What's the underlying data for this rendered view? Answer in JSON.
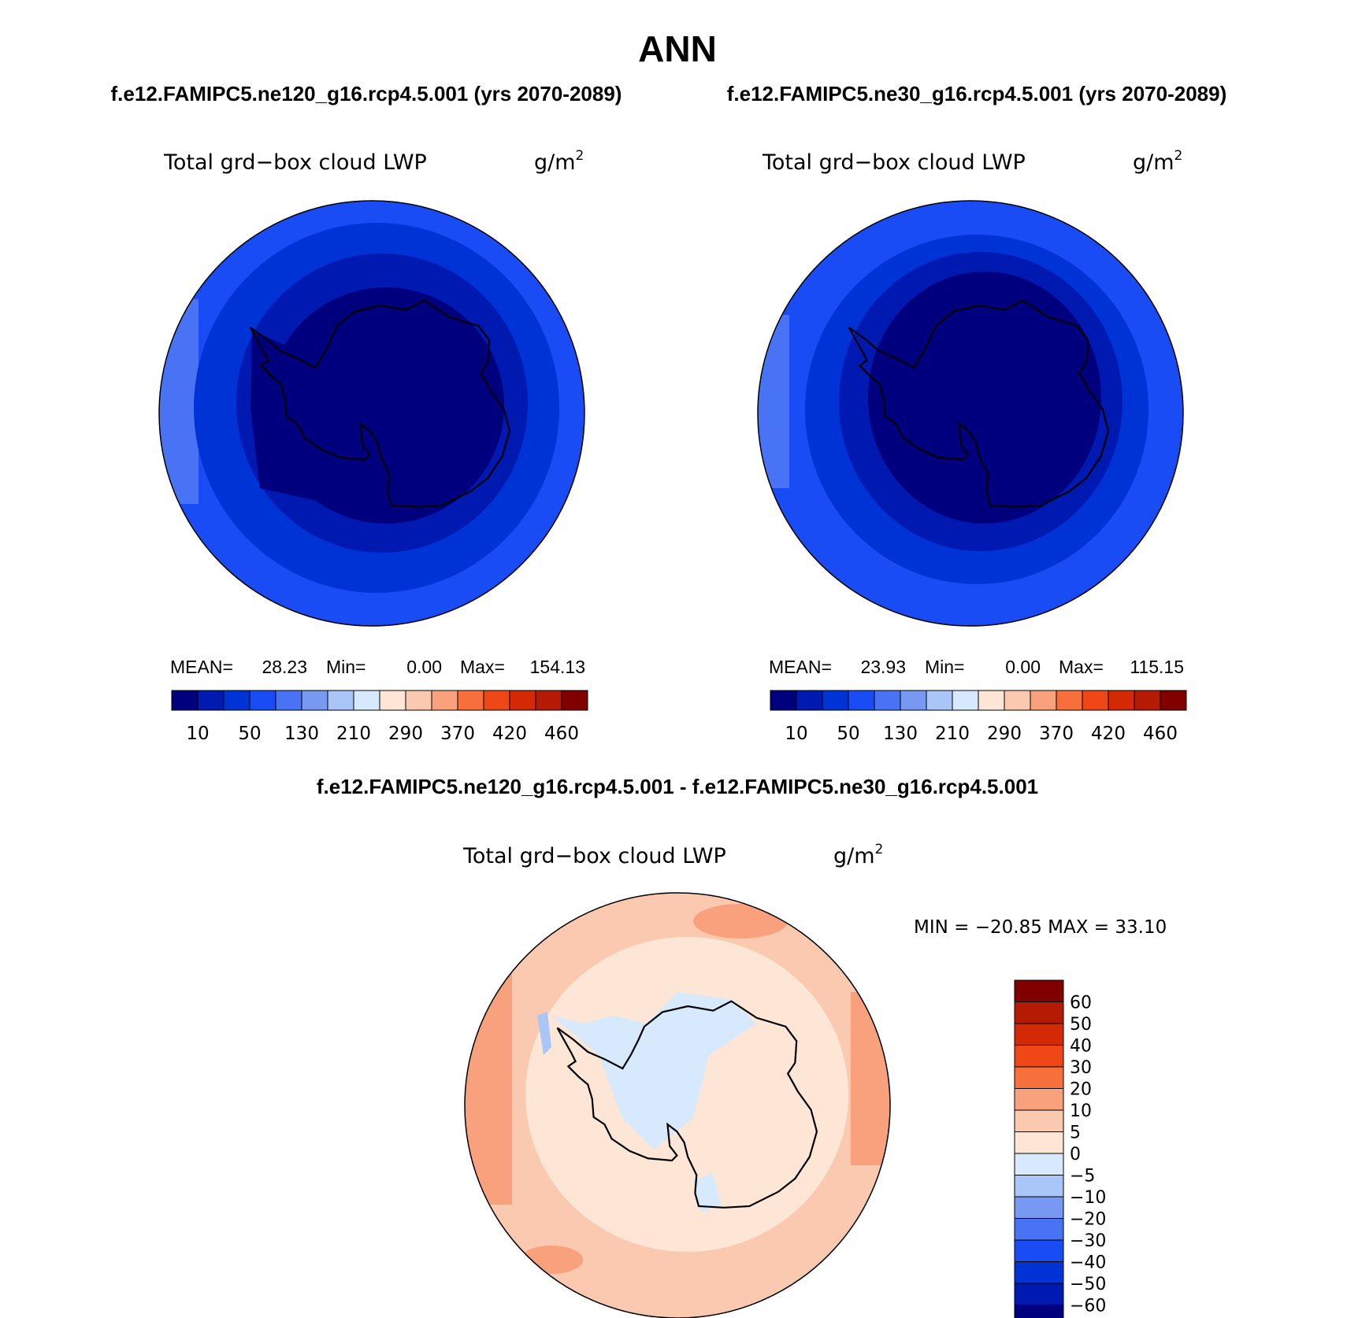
{
  "header": {
    "title": "ANN",
    "case_left": "f.e12.FAMIPC5.ne120_g16.rcp4.5.001 (yrs 2070-2089)",
    "case_right": "f.e12.FAMIPC5.ne30_g16.rcp4.5.001 (yrs 2070-2089)",
    "diff_title": "f.e12.FAMIPC5.ne120_g16.rcp4.5.001 - f.e12.FAMIPC5.ne30_g16.rcp4.5.001"
  },
  "panels": [
    {
      "id": "ne120",
      "variable": "Total grd−box cloud LWP",
      "units_base": "g/m",
      "units_exp": "2",
      "stats": {
        "mean_label": "MEAN=",
        "mean": "28.23",
        "min_label": "Min=",
        "min": "0.00",
        "max_label": "Max=",
        "max": "154.13"
      }
    },
    {
      "id": "ne30",
      "variable": "Total grd−box cloud LWP",
      "units_base": "g/m",
      "units_exp": "2",
      "stats": {
        "mean_label": "MEAN=",
        "mean": "23.93",
        "min_label": "Min=",
        "min": "0.00",
        "max_label": "Max=",
        "max": "115.15"
      }
    }
  ],
  "diff_panel": {
    "variable": "Total grd−box cloud LWP",
    "units_base": "g/m",
    "units_exp": "2",
    "minmax_text": "MIN = −20.85 MAX =   33.10"
  },
  "colorbar_main": {
    "colors": [
      "#00007f",
      "#0019b0",
      "#0033d6",
      "#1a4cf5",
      "#4873f5",
      "#7799f2",
      "#aac6f9",
      "#d7e9fc",
      "#fde6d5",
      "#fbc9b0",
      "#f9a17c",
      "#f7703c",
      "#f04716",
      "#d32a05",
      "#b51a04",
      "#800000"
    ],
    "tick_labels": [
      "10",
      "50",
      "130",
      "210",
      "290",
      "370",
      "420",
      "460"
    ]
  },
  "colorbar_diff": {
    "colors_bottom_to_top": [
      "#00007f",
      "#0019b0",
      "#0033d6",
      "#1a4cf5",
      "#4873f5",
      "#7799f2",
      "#aac6f9",
      "#d7e9fc",
      "#fde6d5",
      "#fbc9b0",
      "#f9a17c",
      "#f7703c",
      "#f04716",
      "#d32a05",
      "#b51a04",
      "#800000"
    ],
    "tick_labels_top_to_bottom": [
      "60",
      "50",
      "40",
      "30",
      "20",
      "10",
      "5",
      "0",
      "−5",
      "−10",
      "−20",
      "−30",
      "−40",
      "−50",
      "−60"
    ]
  },
  "map_colors": {
    "level1": "#00007f",
    "level2": "#0019b0",
    "level3": "#0033d6",
    "level4": "#1a4cf5",
    "level5": "#4873f5",
    "diff_outer": "#f9a17c",
    "diff_mid": "#fbc9b0",
    "diff_inner": "#fde6d5",
    "diff_neg": "#d7e9fc",
    "diff_neg2": "#aac6f9"
  }
}
